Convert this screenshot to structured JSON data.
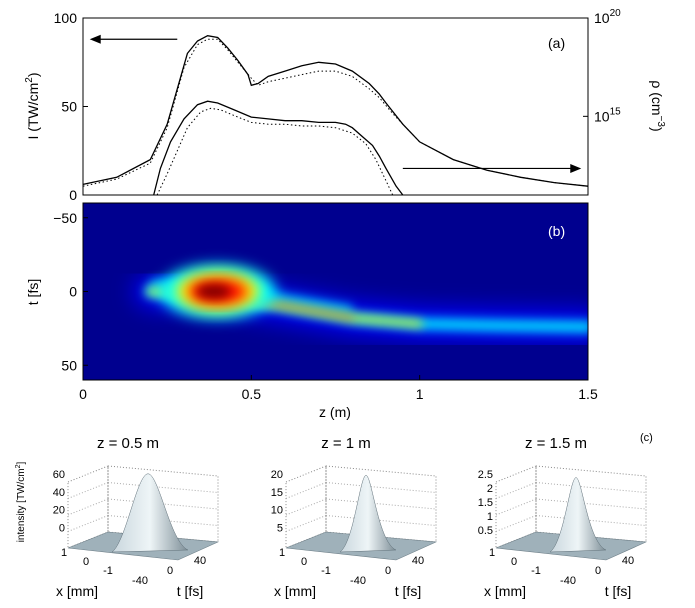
{
  "chart_data": [
    {
      "type": "line",
      "panel_label": "(a)",
      "xlim": [
        0,
        1.5
      ],
      "ylim": [
        0,
        100
      ],
      "y_ticks": [
        "0",
        "50",
        "100"
      ],
      "ylabel_main": "I (TW/cm",
      "ylabel_sup": "2",
      "ylabel_close": ")",
      "y2label_main": "ρ (cm",
      "y2label_sup": "−3",
      "y2label_close": ")",
      "y2_ticks": [
        {
          "base": "10",
          "exp": "20",
          "log_value": 20
        },
        {
          "base": "10",
          "exp": "15",
          "log_value": 15
        }
      ],
      "y2_log_range": [
        11,
        20
      ],
      "series": [
        {
          "role": "intensity-solid",
          "style": "solid",
          "x": [
            0,
            0.1,
            0.2,
            0.25,
            0.28,
            0.31,
            0.34,
            0.37,
            0.4,
            0.43,
            0.46,
            0.49,
            0.5,
            0.52,
            0.55,
            0.6,
            0.65,
            0.7,
            0.75,
            0.8,
            0.85,
            0.88,
            0.9,
            0.95,
            1.0,
            1.1,
            1.2,
            1.3,
            1.4,
            1.5
          ],
          "y": [
            6,
            10,
            20,
            40,
            60,
            80,
            87,
            90,
            89,
            83,
            76,
            68,
            62,
            63,
            67,
            70,
            73,
            75,
            74,
            70,
            63,
            57,
            52,
            40,
            30,
            20,
            14,
            10,
            7,
            5
          ]
        },
        {
          "role": "intensity-dotted",
          "style": "dotted",
          "x": [
            0,
            0.1,
            0.2,
            0.25,
            0.3,
            0.34,
            0.37,
            0.4,
            0.43,
            0.46,
            0.5,
            0.52,
            0.55,
            0.6,
            0.65,
            0.7,
            0.75,
            0.8,
            0.85,
            0.88,
            0.92,
            0.95,
            1.0,
            1.1,
            1.2,
            1.3,
            1.4,
            1.5
          ],
          "y": [
            5,
            9,
            18,
            38,
            72,
            85,
            88,
            88,
            82,
            75,
            66,
            62,
            64,
            66,
            68,
            70,
            70,
            67,
            60,
            55,
            46,
            40,
            30,
            20,
            14,
            10,
            7,
            5
          ]
        },
        {
          "role": "density-solid",
          "style": "solid",
          "x": [
            0.21,
            0.23,
            0.26,
            0.3,
            0.34,
            0.37,
            0.4,
            0.45,
            0.5,
            0.55,
            0.6,
            0.65,
            0.7,
            0.75,
            0.78,
            0.8,
            0.83,
            0.86,
            0.88,
            0.9,
            0.93,
            0.95
          ],
          "y": [
            0,
            15,
            30,
            43,
            51,
            53,
            52,
            48,
            44,
            43,
            42,
            42,
            41,
            41,
            40,
            38,
            33,
            28,
            22,
            15,
            5,
            0
          ]
        },
        {
          "role": "density-dotted",
          "style": "dotted",
          "x": [
            0.22,
            0.25,
            0.28,
            0.31,
            0.35,
            0.38,
            0.41,
            0.46,
            0.5,
            0.55,
            0.6,
            0.65,
            0.7,
            0.75,
            0.8,
            0.84,
            0.87,
            0.9,
            0.92
          ],
          "y": [
            0,
            12,
            25,
            38,
            47,
            49,
            48,
            44,
            41,
            40,
            40,
            39,
            39,
            38,
            35,
            29,
            20,
            8,
            0
          ]
        }
      ],
      "arrows": [
        {
          "points_to": "left-axis",
          "x_from": 0.28,
          "x_to": 0.02,
          "y": 88
        },
        {
          "points_to": "right-axis",
          "x_from": 0.95,
          "x_to": 1.48,
          "y": 15
        }
      ]
    },
    {
      "type": "heatmap",
      "panel_label": "(b)",
      "xlim": [
        0,
        1.5
      ],
      "ylim": [
        -60,
        60
      ],
      "x_ticks": [
        "0",
        "0.5",
        "1",
        "1.5"
      ],
      "y_ticks": [
        "−50",
        "0",
        "50"
      ],
      "y_tick_values": [
        -50,
        0,
        50
      ],
      "xlabel": "z (m)",
      "ylabel": "t [fs]",
      "hotspot": {
        "z": 0.4,
        "t": 0,
        "level": 1.0
      },
      "trail": [
        {
          "z": 0.2,
          "t": 0
        },
        {
          "z": 0.4,
          "t": 2
        },
        {
          "z": 0.6,
          "t": 10
        },
        {
          "z": 0.8,
          "t": 18
        },
        {
          "z": 1.0,
          "t": 22
        },
        {
          "z": 1.2,
          "t": 23
        },
        {
          "z": 1.5,
          "t": 24
        }
      ],
      "colormap": [
        "#00008f",
        "#0000ff",
        "#00ffff",
        "#ffff00",
        "#ff0000",
        "#800000"
      ]
    },
    {
      "type": "surface",
      "panel_label": "(c)",
      "zlabel_main": "intensity [TW/cm",
      "zlabel_sup": "2",
      "zlabel_close": "]",
      "plots": [
        {
          "title": "z = 0.5 m",
          "z_ticks": [
            "60",
            "40",
            "20",
            "0"
          ],
          "x_ticks": [
            "1",
            "0",
            "-1"
          ],
          "t_ticks": [
            "-40",
            "0",
            "40"
          ],
          "x_label": "x [mm]",
          "t_label": "t [fs]",
          "peak_fraction": 0.95
        },
        {
          "title": "z = 1 m",
          "z_ticks": [
            "20",
            "15",
            "10",
            "5"
          ],
          "x_ticks": [
            "1",
            "0",
            "-1"
          ],
          "t_ticks": [
            "-40",
            "0",
            "40"
          ],
          "x_label": "x [mm]",
          "t_label": "t [fs]",
          "peak_fraction": 0.93
        },
        {
          "title": "z = 1.5 m",
          "z_ticks": [
            "2.5",
            "2",
            "1.5",
            "1",
            "0.5"
          ],
          "x_ticks": [
            "1",
            "0",
            "-1"
          ],
          "t_ticks": [
            "-40",
            "0",
            "40"
          ],
          "x_label": "x [mm]",
          "t_label": "t [fs]",
          "peak_fraction": 0.9
        }
      ]
    }
  ]
}
